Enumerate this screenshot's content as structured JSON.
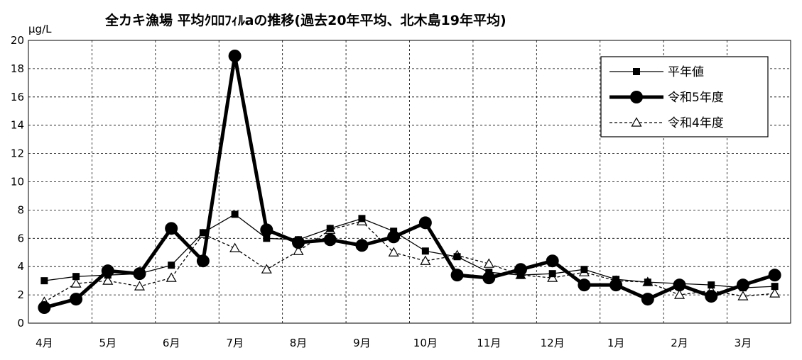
{
  "chart_data": {
    "type": "line",
    "title": "全カキ漁場  平均ｸﾛﾛﾌｨﾙaの推移(過去20年平均、北木島19年平均)",
    "ylabel": "μg/L",
    "xlabel": "",
    "ylim": [
      0,
      20
    ],
    "yticks": [
      0,
      2,
      4,
      6,
      8,
      10,
      12,
      14,
      16,
      18,
      20
    ],
    "month_labels": [
      "4月",
      "5月",
      "6月",
      "7月",
      "8月",
      "9月",
      "10月",
      "11月",
      "12月",
      "1月",
      "2月",
      "3月"
    ],
    "grid": true,
    "legend_position": "top-right",
    "series": [
      {
        "name": "平年値",
        "style": "thin-square",
        "color": "#000000",
        "values": [
          3.0,
          3.3,
          3.4,
          3.5,
          4.1,
          6.4,
          7.7,
          6.0,
          5.9,
          6.7,
          7.4,
          6.5,
          5.1,
          4.7,
          3.6,
          3.4,
          3.5,
          3.8,
          3.1,
          2.9,
          2.8,
          2.7,
          2.5,
          2.6
        ]
      },
      {
        "name": "令和5年度",
        "style": "bold-circle",
        "color": "#000000",
        "values": [
          1.1,
          1.7,
          3.7,
          3.5,
          6.7,
          4.4,
          18.9,
          6.6,
          5.7,
          5.9,
          5.5,
          6.1,
          7.1,
          3.4,
          3.2,
          3.8,
          4.4,
          2.7,
          2.7,
          1.7,
          2.7,
          1.9,
          2.7,
          3.4
        ]
      },
      {
        "name": "令和4年度",
        "style": "dashed-triangle",
        "color": "#000000",
        "values": [
          1.5,
          2.8,
          3.0,
          2.6,
          3.2,
          6.3,
          5.3,
          3.8,
          5.1,
          6.6,
          7.2,
          5.0,
          4.4,
          4.8,
          4.2,
          3.4,
          3.2,
          3.6,
          3.0,
          2.9,
          2.0,
          2.3,
          1.9,
          2.1
        ]
      }
    ]
  }
}
